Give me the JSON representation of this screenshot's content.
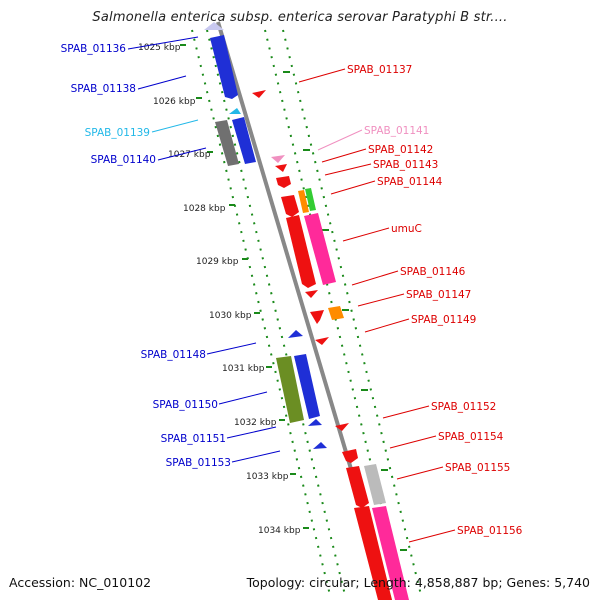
{
  "title": "Salmonella enterica subsp. enterica serovar Paratyphi B str....",
  "footer": {
    "accession": "Accession: NC_010102",
    "topology": "Topology: circular; Length: 4,858,887 bp; Genes: 5,740"
  },
  "colors": {
    "backbone": "#888888",
    "ticks": "#1a8a1a",
    "left_label": "#0000cc",
    "right_label": "#dd0000"
  },
  "scale": {
    "labels": [
      "1025 kbp",
      "1026 kbp",
      "1027 kbp",
      "1028 kbp",
      "1029 kbp",
      "1030 kbp",
      "1031 kbp",
      "1032 kbp",
      "1033 kbp",
      "1034 kbp"
    ]
  },
  "left_genes": [
    {
      "name": "SPAB_01136",
      "color": "#1f2fd6",
      "label_color": "#0000cc"
    },
    {
      "name": "SPAB_01138",
      "color": "#1f2fd6",
      "label_color": "#0000cc"
    },
    {
      "name": "SPAB_01139",
      "color": "#22b8e8",
      "label_color": "#22b8e8"
    },
    {
      "name": "SPAB_01140",
      "color": "#1f2fd6",
      "label_color": "#0000cc"
    },
    {
      "name": "SPAB_01148",
      "color": "#1f2fd6",
      "label_color": "#0000cc"
    },
    {
      "name": "SPAB_01150",
      "color": "#1f2fd6",
      "label_color": "#0000cc"
    },
    {
      "name": "SPAB_01151",
      "color": "#1f2fd6",
      "label_color": "#0000cc"
    },
    {
      "name": "SPAB_01153",
      "color": "#1f2fd6",
      "label_color": "#0000cc"
    }
  ],
  "right_genes": [
    {
      "name": "SPAB_01137",
      "color": "#ee1111",
      "label_color": "#dd0000"
    },
    {
      "name": "SPAB_01141",
      "color": "#f090c0",
      "label_color": "#f090c0"
    },
    {
      "name": "SPAB_01142",
      "color": "#ee1111",
      "label_color": "#dd0000"
    },
    {
      "name": "SPAB_01143",
      "color": "#ee1111",
      "label_color": "#dd0000"
    },
    {
      "name": "SPAB_01144",
      "color": "#ee1111",
      "label_color": "#dd0000"
    },
    {
      "name": "umuC",
      "color": "#ee1111",
      "label_color": "#dd0000"
    },
    {
      "name": "SPAB_01146",
      "color": "#ee1111",
      "label_color": "#dd0000"
    },
    {
      "name": "SPAB_01147",
      "color": "#ee1111",
      "label_color": "#dd0000"
    },
    {
      "name": "SPAB_01149",
      "color": "#ee1111",
      "label_color": "#dd0000"
    },
    {
      "name": "SPAB_01152",
      "color": "#ee1111",
      "label_color": "#dd0000"
    },
    {
      "name": "SPAB_01154",
      "color": "#ee1111",
      "label_color": "#dd0000"
    },
    {
      "name": "SPAB_01155",
      "color": "#ee1111",
      "label_color": "#dd0000"
    },
    {
      "name": "SPAB_01156",
      "color": "#ee1111",
      "label_color": "#dd0000"
    }
  ]
}
